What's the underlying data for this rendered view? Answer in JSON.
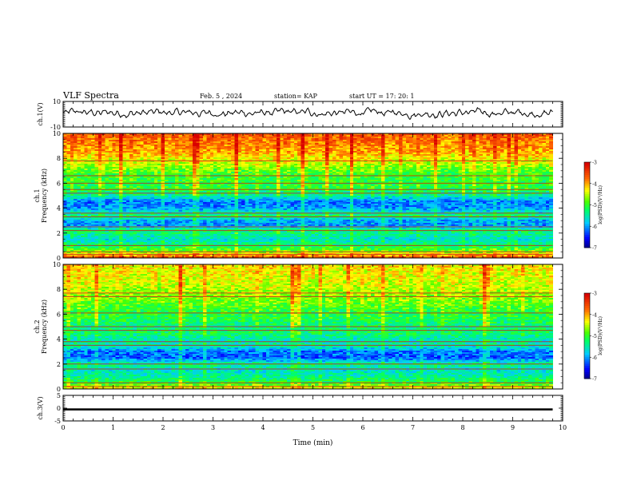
{
  "header": {
    "title": "VLF Spectra",
    "date": "Feb. 5 , 2024",
    "station": "station= KAP",
    "start": "start  UT =    17: 20: 1"
  },
  "chart_data": [
    {
      "type": "line",
      "name": "ch1-voltage",
      "ylabel": "ch.1(V)",
      "ylim": [
        -10,
        10
      ],
      "yticks": [
        "10",
        "-10"
      ],
      "xlim": [
        0,
        10
      ],
      "x_end": 9.8,
      "description_of_shape": "noisy trace oscillating roughly between -3 and 5 V, centered near 1 V",
      "level_mean": 1.0,
      "level_amplitude": 3.5
    },
    {
      "type": "heatmap",
      "name": "ch1-spectrogram",
      "ylabel_line1": "ch.1",
      "ylabel_line2": "Frequency (kHz)",
      "ylim": [
        0,
        10
      ],
      "yticks": [
        "0",
        "2",
        "4",
        "6",
        "8",
        "10"
      ],
      "xlim": [
        0,
        10
      ],
      "x_end": 9.8,
      "colorbar": {
        "label": "log(PSD)(V²/Hz)",
        "range": [
          -7,
          -3
        ],
        "ticks": [
          "-3",
          "-4",
          "-5",
          "-6",
          "-7"
        ]
      },
      "band_profile_kHz": [
        [
          0,
          -3.5
        ],
        [
          0.6,
          -4.8
        ],
        [
          1.0,
          -5.2
        ],
        [
          1.5,
          -5.6
        ],
        [
          2.2,
          -5.2
        ],
        [
          2.6,
          -6.0
        ],
        [
          3.0,
          -5.9
        ],
        [
          3.4,
          -5.2
        ],
        [
          4.0,
          -6.0
        ],
        [
          4.5,
          -6.1
        ],
        [
          5.0,
          -5.4
        ],
        [
          5.6,
          -5.0
        ],
        [
          6.2,
          -5.0
        ],
        [
          6.8,
          -4.9
        ],
        [
          7.5,
          -4.5
        ],
        [
          8.5,
          -4.0
        ],
        [
          10,
          -3.6
        ]
      ],
      "horizontal_lines_kHz": [
        0.3,
        0.5,
        1.0,
        2.2,
        2.5,
        3.3,
        3.6,
        5.2,
        5.5,
        6.0,
        6.6,
        7.8
      ]
    },
    {
      "type": "heatmap",
      "name": "ch2-spectrogram",
      "ylabel_line1": "ch.2",
      "ylabel_line2": "Frequency (kHz)",
      "ylim": [
        0,
        10
      ],
      "yticks": [
        "0",
        "2",
        "4",
        "6",
        "8",
        "10"
      ],
      "xlim": [
        0,
        10
      ],
      "x_end": 9.8,
      "colorbar": {
        "label": "log(PSD)(V²/Hz)",
        "range": [
          -7,
          -3
        ],
        "ticks": [
          "-3",
          "-4",
          "-5",
          "-6",
          "-7"
        ]
      },
      "band_profile_kHz": [
        [
          0,
          -4.2
        ],
        [
          0.5,
          -5.0
        ],
        [
          1.0,
          -5.4
        ],
        [
          1.5,
          -5.6
        ],
        [
          2.0,
          -5.3
        ],
        [
          2.5,
          -6.2
        ],
        [
          3.0,
          -6.1
        ],
        [
          3.5,
          -5.4
        ],
        [
          4.0,
          -5.5
        ],
        [
          4.5,
          -5.2
        ],
        [
          5.0,
          -5.3
        ],
        [
          5.6,
          -5.1
        ],
        [
          6.2,
          -5.0
        ],
        [
          6.8,
          -4.8
        ],
        [
          7.5,
          -4.6
        ],
        [
          8.5,
          -4.4
        ],
        [
          10,
          -4.2
        ]
      ],
      "horizontal_lines_kHz": [
        0.2,
        0.5,
        1.6,
        2.0,
        3.5,
        3.8,
        4.7,
        5.0,
        6.1,
        7.4,
        7.7
      ]
    },
    {
      "type": "line",
      "name": "ch3-voltage",
      "ylabel": "ch.3(V)",
      "ylim": [
        -5,
        5
      ],
      "yticks": [
        "5",
        "0",
        "-5"
      ],
      "xlim": [
        0,
        10
      ],
      "x_end": 9.8,
      "xlabel": "Time  (min)",
      "xticks": [
        "0",
        "1",
        "2",
        "3",
        "4",
        "5",
        "6",
        "7",
        "8",
        "9",
        "10"
      ],
      "level_mean": -0.5,
      "level_amplitude": 0.4
    }
  ]
}
